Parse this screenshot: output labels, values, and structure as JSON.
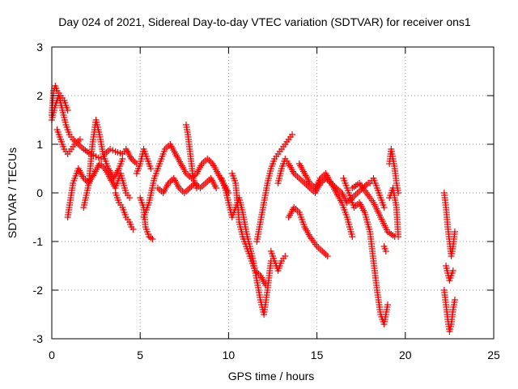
{
  "chart_data": {
    "type": "scatter",
    "title": "Day 024 of 2021, Sidereal Day-to-day VTEC variation (SDTVAR) for receiver ons1",
    "xlabel": "GPS time / hours",
    "ylabel": "SDTVAR / TECUs",
    "xlim": [
      0,
      25
    ],
    "ylim": [
      -3,
      3
    ],
    "xticks": [
      "0",
      "5",
      "10",
      "15",
      "20",
      "25"
    ],
    "yticks": [
      "3",
      "2",
      "1",
      "0",
      "-1",
      "-2",
      "-3"
    ],
    "grid": true,
    "marker": "+",
    "series": [
      {
        "name": "SDTVAR",
        "color": "#ff0000",
        "tracks": [
          {
            "x": [
              0.0,
              0.2,
              0.4,
              0.6,
              0.8,
              1.0,
              1.2,
              1.5,
              1.8,
              2.0,
              2.2,
              2.5,
              2.8,
              3.0,
              3.3,
              3.6,
              4.0,
              4.2,
              4.5,
              4.8
            ],
            "y": [
              1.5,
              1.8,
              2.0,
              1.7,
              1.4,
              1.2,
              1.1,
              1.0,
              0.9,
              0.85,
              0.8,
              0.75,
              0.7,
              0.8,
              0.9,
              0.85,
              0.8,
              0.9,
              0.7,
              0.6
            ]
          },
          {
            "x": [
              0.0,
              0.1,
              0.2,
              0.3,
              0.5,
              0.7,
              0.9
            ],
            "y": [
              1.6,
              2.1,
              2.2,
              2.1,
              2.0,
              1.9,
              1.7
            ]
          },
          {
            "x": [
              0.3,
              0.5,
              0.7,
              0.9,
              1.1,
              1.3,
              1.6
            ],
            "y": [
              1.3,
              1.1,
              0.9,
              0.8,
              0.9,
              1.0,
              1.1
            ]
          },
          {
            "x": [
              0.9,
              1.2,
              1.5,
              1.8,
              2.1,
              2.4,
              2.7,
              3.0,
              3.3,
              3.6,
              3.9,
              4.2,
              4.4
            ],
            "y": [
              -0.5,
              0.2,
              0.5,
              0.3,
              0.2,
              0.4,
              0.6,
              0.5,
              0.3,
              0.1,
              0.4,
              0.0,
              -0.1
            ]
          },
          {
            "x": [
              1.8,
              2.1,
              2.3,
              2.5,
              2.7,
              2.9,
              3.2,
              3.5,
              3.8,
              4.0
            ],
            "y": [
              -0.3,
              0.2,
              1.0,
              1.5,
              1.2,
              0.8,
              0.5,
              0.3,
              0.5,
              0.7
            ]
          },
          {
            "x": [
              3.6,
              3.8,
              4.0,
              4.2,
              4.4,
              4.5,
              4.6
            ],
            "y": [
              0.0,
              -0.2,
              -0.3,
              -0.5,
              -0.6,
              -0.7,
              -0.75
            ]
          },
          {
            "x": [
              4.8,
              5.0,
              5.2,
              5.4,
              5.6
            ],
            "y": [
              0.4,
              0.6,
              0.9,
              0.7,
              0.5
            ]
          },
          {
            "x": [
              5.0,
              5.2,
              5.3,
              5.5,
              5.7
            ],
            "y": [
              -0.1,
              -0.3,
              -0.7,
              -0.9,
              -0.95
            ]
          },
          {
            "x": [
              5.2,
              5.5,
              5.8,
              6.1,
              6.4,
              6.7,
              7.0,
              7.3,
              7.6,
              7.9,
              8.2,
              8.5,
              8.8,
              9.1,
              9.4,
              9.7,
              10.0
            ],
            "y": [
              -0.5,
              -0.2,
              0.3,
              0.6,
              0.9,
              1.0,
              0.8,
              0.6,
              0.4,
              0.3,
              0.4,
              0.6,
              0.7,
              0.6,
              0.4,
              0.2,
              0.0
            ]
          },
          {
            "x": [
              6.0,
              6.3,
              6.6,
              6.9,
              7.2,
              7.5,
              7.8,
              8.1,
              8.4,
              8.7,
              9.0,
              9.3
            ],
            "y": [
              0.1,
              0.0,
              0.2,
              0.3,
              0.1,
              0.0,
              0.1,
              0.2,
              0.1,
              0.2,
              0.3,
              0.1
            ]
          },
          {
            "x": [
              7.6,
              7.7,
              7.8,
              7.9,
              8.0,
              8.2
            ],
            "y": [
              1.4,
              1.2,
              0.9,
              0.6,
              0.3,
              0.1
            ]
          },
          {
            "x": [
              9.6,
              9.8,
              10.0,
              10.2,
              10.4,
              10.6,
              10.8,
              11.0,
              11.2,
              11.4,
              11.6,
              11.8,
              12.0,
              12.2,
              12.4
            ],
            "y": [
              0.3,
              0.1,
              -0.2,
              -0.5,
              -0.3,
              -0.1,
              -0.4,
              -0.8,
              -1.1,
              -1.4,
              -1.8,
              -2.2,
              -2.5,
              -2.0,
              -1.4
            ]
          },
          {
            "x": [
              10.2,
              10.4,
              10.6,
              10.8,
              11.0,
              11.2,
              11.5,
              11.8,
              12.1
            ],
            "y": [
              0.4,
              0.2,
              -0.6,
              -0.9,
              -1.1,
              -1.3,
              -1.6,
              -1.7,
              -1.9
            ]
          },
          {
            "x": [
              11.6,
              11.8,
              12.0,
              12.2,
              12.4,
              12.6,
              12.8,
              13.0,
              13.2,
              13.4,
              13.6
            ],
            "y": [
              -1.0,
              -0.6,
              -0.2,
              0.2,
              0.5,
              0.7,
              0.8,
              0.9,
              1.0,
              1.1,
              1.2
            ]
          },
          {
            "x": [
              12.4,
              12.6,
              12.8,
              13.0,
              13.2
            ],
            "y": [
              -1.2,
              -1.4,
              -1.6,
              -1.4,
              -1.3
            ]
          },
          {
            "x": [
              12.8,
              13.0,
              13.2,
              13.4,
              13.7,
              14.0,
              14.3,
              14.6,
              14.9,
              15.2,
              15.5,
              15.8,
              16.1,
              16.4,
              16.7,
              17.0,
              17.3,
              17.6,
              17.9
            ],
            "y": [
              0.2,
              0.5,
              0.7,
              0.6,
              0.4,
              0.3,
              0.2,
              0.1,
              0.0,
              0.2,
              0.3,
              0.2,
              0.1,
              0.0,
              -0.2,
              -0.1,
              0.0,
              0.1,
              0.2
            ]
          },
          {
            "x": [
              13.4,
              13.7,
              14.0,
              14.3,
              14.6,
              15.0,
              15.3,
              15.6
            ],
            "y": [
              -0.5,
              -0.3,
              -0.4,
              -0.7,
              -0.9,
              -1.1,
              -1.2,
              -1.3
            ]
          },
          {
            "x": [
              14.0,
              14.3,
              14.6,
              14.9,
              15.2,
              15.5,
              15.8,
              16.1,
              16.4,
              16.7,
              17.0
            ],
            "y": [
              0.6,
              0.4,
              0.2,
              0.1,
              0.3,
              0.4,
              0.2,
              0.0,
              -0.2,
              -0.5,
              -0.9
            ]
          },
          {
            "x": [
              16.5,
              16.8,
              17.1,
              17.4,
              17.7,
              18.0,
              18.2,
              18.4,
              18.6,
              18.8,
              19.0
            ],
            "y": [
              0.3,
              0.0,
              -0.3,
              -0.2,
              -0.4,
              -0.8,
              -1.4,
              -2.0,
              -2.5,
              -2.7,
              -2.3
            ]
          },
          {
            "x": [
              17.0,
              17.4,
              17.8,
              18.2,
              18.6,
              19.0,
              19.4
            ],
            "y": [
              0.1,
              0.2,
              0.0,
              -0.2,
              -0.5,
              -0.8,
              -0.9
            ]
          },
          {
            "x": [
              18.0,
              18.2,
              18.4,
              18.6,
              18.8
            ],
            "y": [
              0.2,
              0.3,
              0.1,
              -0.1,
              -0.3
            ]
          },
          {
            "x": [
              18.8,
              18.9
            ],
            "y": [
              -1.1,
              -1.2
            ]
          },
          {
            "x": [
              19.1,
              19.2,
              19.3,
              19.4,
              19.5,
              19.6
            ],
            "y": [
              0.6,
              0.9,
              0.7,
              0.5,
              0.2,
              0.0
            ]
          },
          {
            "x": [
              19.1,
              19.3,
              19.5,
              19.6
            ],
            "y": [
              -0.1,
              0.1,
              -0.3,
              -0.9
            ]
          },
          {
            "x": [
              22.2,
              22.3,
              22.4,
              22.5,
              22.6,
              22.7,
              22.8
            ],
            "y": [
              0.0,
              -0.3,
              -0.7,
              -1.0,
              -1.3,
              -1.1,
              -0.8
            ]
          },
          {
            "x": [
              22.2,
              22.3,
              22.4,
              22.5,
              22.6,
              22.7,
              22.8
            ],
            "y": [
              -2.0,
              -2.3,
              -2.6,
              -2.85,
              -2.7,
              -2.4,
              -2.2
            ]
          },
          {
            "x": [
              22.3,
              22.5,
              22.7
            ],
            "y": [
              -1.5,
              -1.8,
              -1.6
            ]
          }
        ]
      }
    ]
  }
}
